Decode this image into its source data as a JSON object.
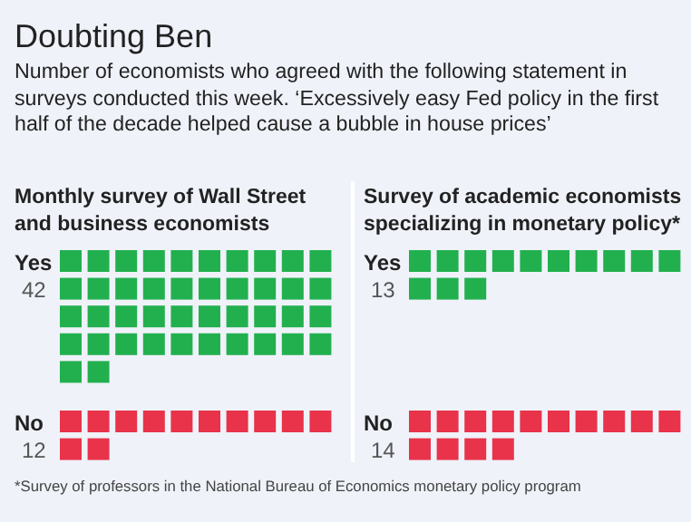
{
  "chart_data": {
    "type": "other",
    "title": "Doubting Ben",
    "subtitle": "Number of economists who agreed with the following statement in surveys conducted this week. ‘Excessively easy Fed policy in the first half of the decade helped cause a bubble in house prices’",
    "categories": [
      "Yes",
      "No"
    ],
    "colors": [
      "#22b04f",
      "#e8334a"
    ],
    "series": [
      {
        "name": "Monthly survey of Wall Street and business economists",
        "values": [
          42,
          12
        ]
      },
      {
        "name": "Survey of academic economists specializing in monetary policy*",
        "values": [
          13,
          14
        ]
      }
    ],
    "data_labels": true,
    "annotations": [
      "*Survey of professors in the National Bureau of Economics monetary policy program"
    ]
  }
}
